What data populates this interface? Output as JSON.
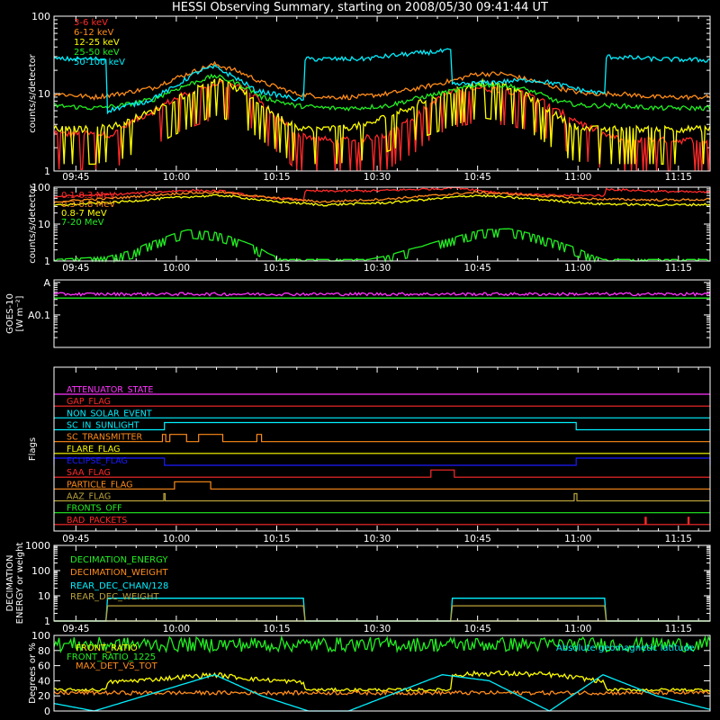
{
  "title": "HESSI Observing Summary, starting on 2008/05/30 09:41:44 UT",
  "colors": {
    "red": "#ff2a2a",
    "orange": "#ff8c1a",
    "yellow": "#ffff00",
    "green": "#22ee22",
    "cyan": "#00f0ff",
    "magenta": "#ff33ff",
    "blue": "#1a1aff",
    "olive": "#b9a23a",
    "axis": "#ffffff"
  },
  "chart_data": [
    {
      "id": "photon-rates-low",
      "type": "line",
      "ylabel": "counts/s/detector",
      "yscale": "log",
      "ylim": [
        1,
        100
      ],
      "yticks": [
        1,
        10,
        100
      ],
      "xticks": [
        "09:45",
        "10:00",
        "10:15",
        "10:30",
        "10:45",
        "11:00",
        "11:15"
      ],
      "xlim_minutes": [
        0,
        98
      ],
      "xtick_minutes": [
        3.27,
        18.27,
        33.27,
        48.27,
        63.27,
        78.27,
        93.27
      ],
      "series": [
        {
          "name": "3-6 keV",
          "color": "#ff2a2a",
          "noise": "spiky",
          "x": [
            0,
            9,
            15,
            21,
            25,
            29,
            32,
            36,
            41,
            45,
            50,
            54,
            59,
            63,
            68,
            72,
            75,
            79,
            82,
            85,
            88,
            90,
            98
          ],
          "y": [
            3,
            3,
            6,
            11,
            14,
            11,
            6,
            3,
            2.5,
            2.5,
            3,
            5,
            10,
            12,
            11,
            9,
            6,
            4,
            3,
            2.5,
            2.5,
            2.5,
            2.5
          ]
        },
        {
          "name": "6-12 keV",
          "color": "#ff8c1a",
          "noise": "small",
          "x": [
            0,
            6,
            10,
            15,
            20,
            24,
            27,
            31,
            36,
            41,
            45,
            50,
            55,
            60,
            63,
            67,
            71,
            75,
            79,
            84,
            90,
            98
          ],
          "y": [
            10,
            9,
            10,
            12,
            18,
            24,
            20,
            14,
            10,
            9,
            9,
            10,
            12,
            15,
            18,
            18,
            15,
            12,
            10,
            10,
            9,
            9
          ]
        },
        {
          "name": "12-25 keV",
          "color": "#ffff00",
          "noise": "spiky",
          "x": [
            0,
            6,
            10,
            15,
            20,
            24,
            27,
            31,
            35,
            38,
            42,
            47,
            52,
            57,
            61,
            64,
            68,
            71,
            74,
            77,
            80,
            84,
            90,
            98
          ],
          "y": [
            3.5,
            3.5,
            4,
            6,
            10,
            15,
            12,
            7,
            4,
            3.5,
            3.5,
            4,
            6,
            9,
            12,
            14,
            12,
            9,
            6,
            4,
            3.5,
            3.5,
            3.5,
            3.5
          ]
        },
        {
          "name": "25-50 keV",
          "color": "#22ee22",
          "noise": "small",
          "x": [
            0,
            6,
            10,
            15,
            20,
            24,
            27,
            31,
            36,
            41,
            45,
            50,
            55,
            60,
            63,
            67,
            71,
            75,
            79,
            84,
            90,
            98
          ],
          "y": [
            7,
            6.5,
            7,
            8.5,
            13,
            17,
            14,
            9,
            7,
            6.5,
            6.5,
            7,
            9,
            11,
            13,
            13,
            11,
            8,
            7,
            7,
            6.5,
            6.5
          ]
        },
        {
          "name": "50-100 keV",
          "color": "#00f0ff",
          "noise": "small",
          "x": [
            0,
            7.9,
            8,
            14,
            18,
            22,
            24,
            26,
            30,
            37.4,
            37.5,
            46,
            52,
            59.4,
            59.5,
            71,
            74,
            79,
            82.3,
            82.4,
            90,
            98
          ],
          "y": [
            28,
            28,
            6,
            8,
            12,
            20,
            22,
            18,
            11,
            8,
            28,
            28,
            32,
            36,
            13,
            15,
            14,
            11,
            10,
            30,
            28,
            27
          ]
        }
      ]
    },
    {
      "id": "photon-rates-high",
      "type": "line",
      "ylabel": "counts/s/detector",
      "yscale": "log",
      "ylim": [
        1,
        100
      ],
      "yticks": [
        1,
        10,
        100
      ],
      "xticks": [
        "09:45",
        "10:00",
        "10:15",
        "10:30",
        "10:45",
        "11:00",
        "11:15"
      ],
      "xlim_minutes": [
        0,
        98
      ],
      "xtick_minutes": [
        3.27,
        18.27,
        33.27,
        48.27,
        63.27,
        78.27,
        93.27
      ],
      "series": [
        {
          "name": "0.1-0.3 MeV",
          "color": "#ff2a2a",
          "noise": "small",
          "x": [
            0,
            10,
            20,
            25,
            30,
            37.4,
            37.5,
            48,
            58,
            59.5,
            66,
            70,
            74,
            82.3,
            82.4,
            90,
            98
          ],
          "y": [
            55,
            65,
            82,
            78,
            55,
            45,
            78,
            80,
            92,
            100,
            72,
            65,
            60,
            60,
            88,
            78,
            72
          ]
        },
        {
          "name": "0.3-0.8 MeV",
          "color": "#ff8c1a",
          "noise": "small",
          "x": [
            0,
            10,
            20,
            25,
            32,
            40,
            50,
            58,
            63,
            70,
            80,
            90,
            98
          ],
          "y": [
            40,
            52,
            70,
            72,
            52,
            40,
            48,
            62,
            72,
            62,
            48,
            45,
            46
          ]
        },
        {
          "name": "0.8-7 MeV",
          "color": "#ffff00",
          "noise": "small",
          "x": [
            0,
            10,
            20,
            25,
            32,
            40,
            50,
            58,
            63,
            70,
            80,
            90,
            98
          ],
          "y": [
            32,
            40,
            55,
            60,
            42,
            33,
            38,
            50,
            60,
            50,
            36,
            33,
            34
          ]
        },
        {
          "name": "7-20 MeV",
          "color": "#22ee22",
          "noise": "steps",
          "x": [
            0,
            8,
            12,
            16,
            20,
            24,
            28,
            32,
            34,
            47,
            50,
            55,
            60,
            64,
            68,
            72,
            76,
            80,
            82,
            98
          ],
          "y": [
            1.1,
            1.3,
            2,
            4,
            7,
            6,
            3.5,
            1.6,
            1.1,
            1.1,
            1.4,
            2.5,
            4.5,
            7,
            7.5,
            5,
            3,
            1.5,
            1.1,
            1.1
          ]
        }
      ]
    },
    {
      "id": "goes-flux",
      "type": "line",
      "ylabel": "GOES-10",
      "ylabel2": "[W m⁻²]",
      "yscale": "log",
      "ylim": [
        1e-09,
        1.2e-07
      ],
      "yticks": [
        1e-07,
        1e-08
      ],
      "yticklabels": [
        "A",
        "A0.1"
      ],
      "xlim_minutes": [
        0,
        98
      ],
      "series": [
        {
          "name": "GOES long",
          "color": "#ff33ff",
          "noise": "jitter",
          "x": [
            0,
            98
          ],
          "y": [
            4.4e-08,
            4.4e-08
          ]
        },
        {
          "name": "GOES short",
          "color": "#22ee22",
          "noise": "none",
          "x": [
            0,
            98
          ],
          "y": [
            3.3e-08,
            3.3e-08
          ]
        }
      ]
    },
    {
      "id": "flags",
      "type": "line",
      "ylabel": "Flags",
      "xticks": [
        "09:45",
        "10:00",
        "10:15",
        "10:30",
        "10:45",
        "11:00",
        "11:15"
      ],
      "xlim_minutes": [
        0,
        98
      ],
      "xtick_minutes": [
        3.27,
        18.27,
        33.27,
        48.27,
        63.27,
        78.27,
        93.27
      ],
      "flags": [
        {
          "label": "ATTENUATOR_STATE",
          "color": "#ff33ff",
          "on": []
        },
        {
          "label": "GAP_FLAG",
          "color": "#ff2a2a",
          "on": []
        },
        {
          "label": "NON_SOLAR_EVENT",
          "color": "#00f0ff",
          "on": []
        },
        {
          "label": "SC_IN_SUNLIGHT",
          "color": "#00f0ff",
          "on": [
            [
              16.5,
              78
            ]
          ]
        },
        {
          "label": "SC_TRANSMITTER",
          "color": "#ff8c1a",
          "on": [
            [
              16.2,
              16.7
            ],
            [
              17.3,
              19.8
            ],
            [
              21.6,
              25.2
            ],
            [
              30.3,
              31.0
            ]
          ]
        },
        {
          "label": "FLARE_FLAG",
          "color": "#ffff00",
          "on": []
        },
        {
          "label": "ECLIPSE_FLAG",
          "color": "#1a1aff",
          "on": [
            [
              0,
              16.5
            ],
            [
              78,
              98
            ]
          ]
        },
        {
          "label": "SAA_FLAG",
          "color": "#ff2a2a",
          "on": [
            [
              56.3,
              59.8
            ]
          ]
        },
        {
          "label": "PARTICLE_FLAG",
          "color": "#ff8c1a",
          "on": [
            [
              18,
              23.4
            ]
          ]
        },
        {
          "label": "AAZ_FLAG",
          "color": "#b9a23a",
          "on": [
            [
              16.4,
              16.6
            ],
            [
              77.7,
              78.1
            ]
          ]
        },
        {
          "label": "FRONTS_OFF",
          "color": "#22ee22",
          "on": []
        },
        {
          "label": "BAD_PACKETS",
          "color": "#ff2a2a",
          "on": [
            [
              88.3,
              88.45
            ],
            [
              94.7,
              94.85
            ]
          ]
        }
      ]
    },
    {
      "id": "decimation",
      "type": "line",
      "ylabel": "DECIMATION",
      "ylabel2": "ENERGY or weight",
      "yscale": "log",
      "ylim": [
        1,
        1000
      ],
      "yticks": [
        1,
        10,
        100,
        1000
      ],
      "xticks": [
        "09:45",
        "10:00",
        "10:15",
        "10:30",
        "10:45",
        "11:00",
        "11:15"
      ],
      "xlim_minutes": [
        0,
        98
      ],
      "xtick_minutes": [
        3.27,
        18.27,
        33.27,
        48.27,
        63.27,
        78.27,
        93.27
      ],
      "series": [
        {
          "name": "DECIMATION_ENERGY",
          "color": "#22ee22",
          "noise": "none",
          "x": [
            0,
            98
          ],
          "y": [
            1,
            1
          ]
        },
        {
          "name": "DECIMATION_WEIGHT",
          "color": "#ff8c1a",
          "noise": "none",
          "x": [
            0,
            98
          ],
          "y": [
            1,
            1
          ]
        },
        {
          "name": "REAR_DEC_CHAN/128",
          "color": "#00f0ff",
          "noise": "none",
          "x": [
            0,
            7.9,
            8,
            37.4,
            37.5,
            59.4,
            59.5,
            82.3,
            82.4,
            98
          ],
          "y": [
            1,
            1,
            8,
            8,
            1,
            1,
            8,
            8,
            1,
            1
          ]
        },
        {
          "name": "REAR_DEC_WEIGHT",
          "color": "#b9a23a",
          "noise": "none",
          "x": [
            0,
            7.9,
            8,
            37.4,
            37.5,
            59.4,
            59.5,
            82.3,
            82.4,
            98
          ],
          "y": [
            1,
            1,
            4,
            4,
            1,
            1,
            4,
            4,
            1,
            1
          ]
        }
      ]
    },
    {
      "id": "ratios",
      "type": "line",
      "ylabel": "Degrees or %",
      "ylim": [
        0,
        100
      ],
      "yticks": [
        0,
        20,
        40,
        60,
        80,
        100
      ],
      "xlim_minutes": [
        0,
        98
      ],
      "series": [
        {
          "name": "FRONT_RATIO",
          "color": "#ffff00",
          "noise": "small",
          "x": [
            0,
            7.9,
            8,
            15,
            24,
            30,
            37.4,
            37.5,
            59.4,
            59.5,
            66,
            74,
            80,
            82.3,
            82.4,
            98
          ],
          "y": [
            28,
            28,
            38,
            42,
            48,
            42,
            38,
            28,
            28,
            48,
            50,
            48,
            42,
            38,
            28,
            28
          ]
        },
        {
          "name": "FRONT_RATIO_1225",
          "color": "#22ee22",
          "noise": "jitter",
          "x": [
            0,
            98
          ],
          "y": [
            88,
            88
          ]
        },
        {
          "name": "MAX_DET_VS_TOT",
          "color": "#ff8c1a",
          "noise": "jitter",
          "x": [
            0,
            98
          ],
          "y": [
            24,
            24
          ]
        },
        {
          "name": "Absolute geomagnetic latitude",
          "color": "#00f0ff",
          "noise": "none",
          "x": [
            0,
            6,
            24,
            31,
            38,
            44,
            58,
            65,
            74,
            82,
            90,
            98
          ],
          "y": [
            10,
            0,
            48,
            20,
            0,
            0,
            48,
            40,
            0,
            48,
            20,
            2
          ]
        }
      ]
    }
  ]
}
